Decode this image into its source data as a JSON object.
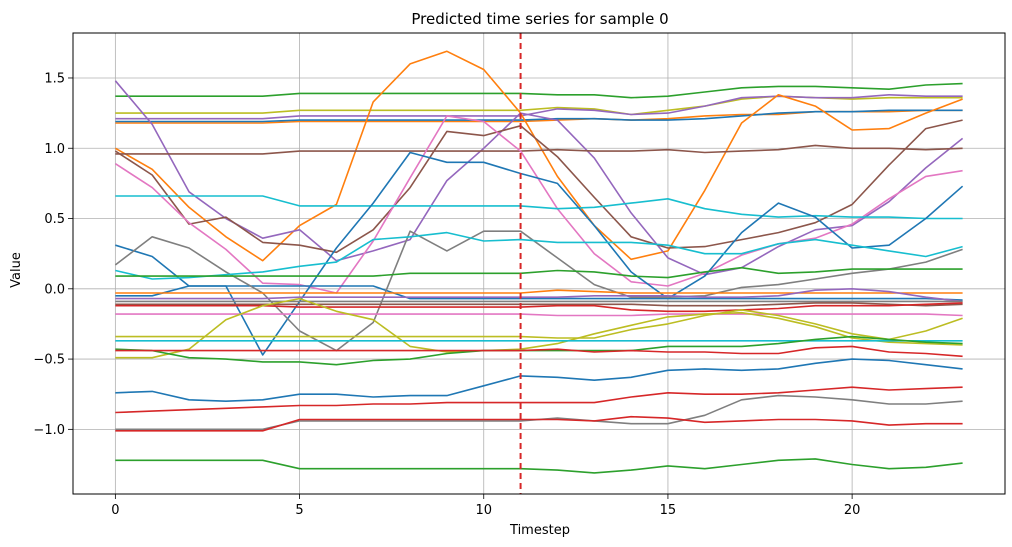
{
  "chart_data": {
    "type": "line",
    "title": "Predicted time series for sample 0",
    "xlabel": "Timestep",
    "ylabel": "Value",
    "xlim": [
      -1.15,
      24.15
    ],
    "ylim": [
      -1.46,
      1.82
    ],
    "xticks": [
      0,
      5,
      10,
      15,
      20
    ],
    "yticks": [
      -1.0,
      -0.5,
      0.0,
      0.5,
      1.0,
      1.5
    ],
    "xtick_labels": [
      "0",
      "5",
      "10",
      "15",
      "20"
    ],
    "ytick_labels": [
      "−1.0",
      "−0.5",
      "0.0",
      "0.5",
      "1.0",
      "1.5"
    ],
    "grid": true,
    "vline": {
      "x": 11,
      "color": "#d62728",
      "style": "dashed"
    },
    "x": [
      0,
      1,
      2,
      3,
      4,
      5,
      6,
      7,
      8,
      9,
      10,
      11,
      12,
      13,
      14,
      15,
      16,
      17,
      18,
      19,
      20,
      21,
      22,
      23
    ],
    "series": [
      {
        "color": "#2ca02c",
        "values": [
          1.37,
          1.37,
          1.37,
          1.37,
          1.37,
          1.39,
          1.39,
          1.39,
          1.39,
          1.39,
          1.39,
          1.39,
          1.38,
          1.38,
          1.36,
          1.37,
          1.4,
          1.43,
          1.44,
          1.44,
          1.43,
          1.42,
          1.45,
          1.46
        ]
      },
      {
        "color": "#bcbd22",
        "values": [
          1.25,
          1.25,
          1.25,
          1.25,
          1.25,
          1.27,
          1.27,
          1.27,
          1.27,
          1.27,
          1.27,
          1.27,
          1.29,
          1.28,
          1.24,
          1.27,
          1.3,
          1.35,
          1.37,
          1.36,
          1.35,
          1.36,
          1.36,
          1.36
        ]
      },
      {
        "color": "#9467bd",
        "values": [
          1.21,
          1.21,
          1.21,
          1.21,
          1.21,
          1.23,
          1.23,
          1.23,
          1.23,
          1.23,
          1.23,
          1.23,
          1.28,
          1.27,
          1.24,
          1.25,
          1.3,
          1.36,
          1.37,
          1.36,
          1.36,
          1.38,
          1.37,
          1.37
        ]
      },
      {
        "color": "#ff7f0e",
        "values": [
          1.18,
          1.18,
          1.18,
          1.18,
          1.18,
          1.19,
          1.19,
          1.19,
          1.19,
          1.19,
          1.19,
          1.19,
          1.2,
          1.21,
          1.2,
          1.21,
          1.23,
          1.24,
          1.24,
          1.26,
          1.26,
          1.26,
          1.27,
          1.27
        ]
      },
      {
        "color": "#1f77b4",
        "values": [
          1.19,
          1.19,
          1.19,
          1.19,
          1.19,
          1.2,
          1.2,
          1.2,
          1.2,
          1.2,
          1.2,
          1.2,
          1.21,
          1.21,
          1.2,
          1.2,
          1.21,
          1.23,
          1.25,
          1.26,
          1.26,
          1.27,
          1.27,
          1.27
        ]
      },
      {
        "color": "#ff7f0e",
        "values": [
          1.0,
          0.85,
          0.58,
          0.37,
          0.2,
          0.45,
          0.6,
          1.33,
          1.6,
          1.69,
          1.56,
          1.25,
          0.8,
          0.45,
          0.21,
          0.27,
          0.7,
          1.18,
          1.38,
          1.3,
          1.13,
          1.14,
          1.25,
          1.35
        ]
      },
      {
        "color": "#9467bd",
        "values": [
          1.48,
          1.17,
          0.69,
          0.5,
          0.36,
          0.42,
          0.2,
          0.27,
          0.35,
          0.77,
          1.0,
          1.25,
          1.2,
          0.93,
          0.54,
          0.22,
          0.1,
          0.15,
          0.3,
          0.42,
          0.45,
          0.62,
          0.86,
          1.07
        ]
      },
      {
        "color": "#8c564b",
        "values": [
          0.96,
          0.96,
          0.96,
          0.96,
          0.96,
          0.98,
          0.98,
          0.98,
          0.98,
          0.98,
          0.98,
          0.98,
          0.99,
          0.98,
          0.98,
          0.99,
          0.97,
          0.98,
          0.99,
          1.02,
          1.0,
          1.0,
          0.99,
          1.0
        ]
      },
      {
        "color": "#8c564b",
        "values": [
          0.98,
          0.81,
          0.46,
          0.51,
          0.33,
          0.31,
          0.26,
          0.42,
          0.72,
          1.12,
          1.09,
          1.16,
          0.94,
          0.65,
          0.37,
          0.29,
          0.3,
          0.35,
          0.4,
          0.47,
          0.6,
          0.88,
          1.14,
          1.2
        ]
      },
      {
        "color": "#e377c2",
        "values": [
          0.89,
          0.72,
          0.47,
          0.28,
          0.04,
          0.03,
          -0.03,
          0.34,
          0.79,
          1.23,
          1.19,
          0.98,
          0.57,
          0.25,
          0.05,
          0.02,
          0.11,
          0.24,
          0.32,
          0.36,
          0.46,
          0.64,
          0.8,
          0.84
        ]
      },
      {
        "color": "#17becf",
        "values": [
          0.66,
          0.66,
          0.66,
          0.66,
          0.66,
          0.59,
          0.59,
          0.59,
          0.59,
          0.59,
          0.59,
          0.59,
          0.57,
          0.58,
          0.61,
          0.64,
          0.57,
          0.53,
          0.51,
          0.52,
          0.51,
          0.51,
          0.5,
          0.5
        ]
      },
      {
        "color": "#1f77b4",
        "values": [
          0.31,
          0.23,
          0.02,
          0.02,
          0.02,
          0.02,
          0.02,
          0.02,
          -0.07,
          -0.07,
          -0.07,
          -0.07,
          -0.07,
          -0.07,
          -0.07,
          -0.07,
          -0.07,
          -0.07,
          -0.07,
          -0.07,
          -0.07,
          -0.07,
          -0.07,
          -0.08
        ]
      },
      {
        "color": "#1f77b4",
        "values": [
          -0.05,
          -0.05,
          0.02,
          0.02,
          -0.47,
          -0.09,
          0.29,
          0.61,
          0.97,
          0.9,
          0.9,
          0.82,
          0.75,
          0.45,
          0.12,
          -0.07,
          0.09,
          0.4,
          0.61,
          0.51,
          0.29,
          0.31,
          0.5,
          0.73
        ]
      },
      {
        "color": "#7f7f7f",
        "values": [
          0.17,
          0.37,
          0.29,
          0.12,
          -0.03,
          -0.3,
          -0.44,
          -0.24,
          0.41,
          0.27,
          0.41,
          0.41,
          0.22,
          0.03,
          -0.06,
          -0.06,
          -0.05,
          0.01,
          0.03,
          0.07,
          0.11,
          0.14,
          0.19,
          0.28
        ]
      },
      {
        "color": "#17becf",
        "values": [
          0.13,
          0.07,
          0.08,
          0.1,
          0.12,
          0.16,
          0.19,
          0.35,
          0.37,
          0.4,
          0.34,
          0.35,
          0.33,
          0.33,
          0.33,
          0.31,
          0.25,
          0.25,
          0.32,
          0.35,
          0.31,
          0.27,
          0.23,
          0.3
        ]
      },
      {
        "color": "#2ca02c",
        "values": [
          0.09,
          0.09,
          0.09,
          0.09,
          0.09,
          0.09,
          0.09,
          0.09,
          0.11,
          0.11,
          0.11,
          0.11,
          0.13,
          0.12,
          0.09,
          0.08,
          0.12,
          0.15,
          0.11,
          0.12,
          0.14,
          0.14,
          0.14,
          0.14
        ]
      },
      {
        "color": "#ff7f0e",
        "values": [
          -0.03,
          -0.03,
          -0.03,
          -0.03,
          -0.03,
          -0.03,
          -0.03,
          -0.03,
          -0.03,
          -0.03,
          -0.03,
          -0.03,
          -0.01,
          -0.02,
          -0.03,
          -0.03,
          -0.03,
          -0.03,
          -0.03,
          -0.03,
          -0.03,
          -0.03,
          -0.03,
          -0.03
        ]
      },
      {
        "color": "#9467bd",
        "values": [
          -0.07,
          -0.07,
          -0.07,
          -0.07,
          -0.07,
          -0.06,
          -0.06,
          -0.06,
          -0.06,
          -0.06,
          -0.06,
          -0.06,
          -0.06,
          -0.05,
          -0.05,
          -0.05,
          -0.06,
          -0.06,
          -0.05,
          -0.01,
          0.0,
          -0.02,
          -0.06,
          -0.09
        ]
      },
      {
        "color": "#7f7f7f",
        "values": [
          -0.09,
          -0.09,
          -0.09,
          -0.09,
          -0.09,
          -0.09,
          -0.09,
          -0.09,
          -0.09,
          -0.09,
          -0.09,
          -0.09,
          -0.09,
          -0.09,
          -0.09,
          -0.09,
          -0.09,
          -0.09,
          -0.09,
          -0.09,
          -0.09,
          -0.09,
          -0.09,
          -0.09
        ]
      },
      {
        "color": "#8c564b",
        "values": [
          -0.11,
          -0.11,
          -0.11,
          -0.11,
          -0.11,
          -0.11,
          -0.11,
          -0.11,
          -0.11,
          -0.11,
          -0.11,
          -0.11,
          -0.11,
          -0.11,
          -0.11,
          -0.12,
          -0.12,
          -0.12,
          -0.11,
          -0.1,
          -0.1,
          -0.11,
          -0.12,
          -0.11
        ]
      },
      {
        "color": "#d62728",
        "values": [
          -0.12,
          -0.12,
          -0.12,
          -0.12,
          -0.12,
          -0.13,
          -0.13,
          -0.13,
          -0.13,
          -0.13,
          -0.13,
          -0.13,
          -0.12,
          -0.12,
          -0.15,
          -0.16,
          -0.16,
          -0.15,
          -0.14,
          -0.12,
          -0.12,
          -0.12,
          -0.11,
          -0.1
        ]
      },
      {
        "color": "#e377c2",
        "values": [
          -0.18,
          -0.18,
          -0.18,
          -0.18,
          -0.18,
          -0.18,
          -0.18,
          -0.18,
          -0.18,
          -0.18,
          -0.18,
          -0.18,
          -0.19,
          -0.19,
          -0.19,
          -0.18,
          -0.18,
          -0.18,
          -0.18,
          -0.18,
          -0.18,
          -0.18,
          -0.18,
          -0.19
        ]
      },
      {
        "color": "#bcbd22",
        "values": [
          -0.34,
          -0.34,
          -0.34,
          -0.34,
          -0.34,
          -0.34,
          -0.34,
          -0.34,
          -0.34,
          -0.34,
          -0.34,
          -0.34,
          -0.35,
          -0.35,
          -0.29,
          -0.25,
          -0.19,
          -0.15,
          -0.19,
          -0.25,
          -0.32,
          -0.36,
          -0.3,
          -0.21
        ]
      },
      {
        "color": "#bcbd22",
        "values": [
          -0.49,
          -0.49,
          -0.43,
          -0.22,
          -0.12,
          -0.07,
          -0.16,
          -0.22,
          -0.41,
          -0.45,
          -0.44,
          -0.43,
          -0.39,
          -0.32,
          -0.26,
          -0.2,
          -0.18,
          -0.17,
          -0.21,
          -0.27,
          -0.35,
          -0.38,
          -0.39,
          -0.4
        ]
      },
      {
        "color": "#17becf",
        "values": [
          -0.37,
          -0.37,
          -0.37,
          -0.37,
          -0.37,
          -0.37,
          -0.37,
          -0.37,
          -0.37,
          -0.37,
          -0.37,
          -0.37,
          -0.37,
          -0.37,
          -0.37,
          -0.37,
          -0.37,
          -0.37,
          -0.37,
          -0.37,
          -0.37,
          -0.37,
          -0.37,
          -0.37
        ]
      },
      {
        "color": "#2ca02c",
        "values": [
          -0.43,
          -0.44,
          -0.49,
          -0.5,
          -0.52,
          -0.52,
          -0.54,
          -0.51,
          -0.5,
          -0.46,
          -0.44,
          -0.44,
          -0.44,
          -0.44,
          -0.44,
          -0.41,
          -0.41,
          -0.41,
          -0.39,
          -0.36,
          -0.34,
          -0.36,
          -0.38,
          -0.39
        ]
      },
      {
        "color": "#d62728",
        "values": [
          -0.44,
          -0.44,
          -0.44,
          -0.44,
          -0.44,
          -0.44,
          -0.44,
          -0.44,
          -0.44,
          -0.44,
          -0.44,
          -0.44,
          -0.43,
          -0.45,
          -0.44,
          -0.45,
          -0.45,
          -0.46,
          -0.46,
          -0.42,
          -0.41,
          -0.45,
          -0.46,
          -0.48
        ]
      },
      {
        "color": "#1f77b4",
        "values": [
          -0.74,
          -0.73,
          -0.79,
          -0.8,
          -0.79,
          -0.75,
          -0.75,
          -0.77,
          -0.76,
          -0.76,
          -0.69,
          -0.62,
          -0.63,
          -0.65,
          -0.63,
          -0.58,
          -0.57,
          -0.58,
          -0.57,
          -0.53,
          -0.5,
          -0.51,
          -0.54,
          -0.57
        ]
      },
      {
        "color": "#d62728",
        "values": [
          -0.88,
          -0.87,
          -0.86,
          -0.85,
          -0.84,
          -0.83,
          -0.83,
          -0.82,
          -0.82,
          -0.81,
          -0.81,
          -0.81,
          -0.81,
          -0.81,
          -0.77,
          -0.74,
          -0.75,
          -0.75,
          -0.74,
          -0.72,
          -0.7,
          -0.72,
          -0.71,
          -0.7
        ]
      },
      {
        "color": "#7f7f7f",
        "values": [
          -1.0,
          -1.0,
          -1.0,
          -1.0,
          -1.0,
          -0.94,
          -0.94,
          -0.94,
          -0.94,
          -0.94,
          -0.94,
          -0.94,
          -0.92,
          -0.94,
          -0.96,
          -0.96,
          -0.9,
          -0.79,
          -0.76,
          -0.77,
          -0.79,
          -0.82,
          -0.82,
          -0.8
        ]
      },
      {
        "color": "#d62728",
        "values": [
          -1.01,
          -1.01,
          -1.01,
          -1.01,
          -1.01,
          -0.93,
          -0.93,
          -0.93,
          -0.93,
          -0.93,
          -0.93,
          -0.93,
          -0.93,
          -0.94,
          -0.91,
          -0.92,
          -0.95,
          -0.94,
          -0.93,
          -0.93,
          -0.94,
          -0.97,
          -0.96,
          -0.96
        ]
      },
      {
        "color": "#2ca02c",
        "values": [
          -1.22,
          -1.22,
          -1.22,
          -1.22,
          -1.22,
          -1.28,
          -1.28,
          -1.28,
          -1.28,
          -1.28,
          -1.28,
          -1.28,
          -1.29,
          -1.31,
          -1.29,
          -1.26,
          -1.28,
          -1.25,
          -1.22,
          -1.21,
          -1.25,
          -1.28,
          -1.27,
          -1.24
        ]
      }
    ]
  }
}
